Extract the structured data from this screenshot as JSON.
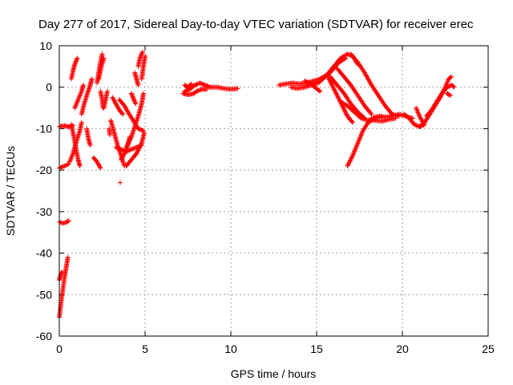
{
  "chart_data": {
    "type": "scatter",
    "title": "Day 277 of 2017, Sidereal Day-to-day VTEC variation (SDTVAR) for receiver erec",
    "xlabel": "GPS time / hours",
    "ylabel": "SDTVAR / TECUs",
    "xlim": [
      0,
      25
    ],
    "ylim": [
      -60,
      10
    ],
    "x_ticks": [
      0,
      5,
      10,
      15,
      20,
      25
    ],
    "y_ticks": [
      -60,
      -50,
      -40,
      -30,
      -20,
      -10,
      0,
      10
    ],
    "grid": true,
    "legend": "none",
    "marker": "plus",
    "color": "#ff0000",
    "series": [
      {
        "tracks": [
          [
            [
              0.0,
              -55.5
            ],
            [
              0.1,
              -52.0
            ],
            [
              0.2,
              -49.0
            ],
            [
              0.3,
              -46.0
            ],
            [
              0.4,
              -43.5
            ],
            [
              0.5,
              -41.0
            ]
          ],
          [
            [
              0.0,
              -46.5
            ],
            [
              0.1,
              -45.0
            ],
            [
              0.15,
              -44.5
            ]
          ],
          [
            [
              0.0,
              -32.5
            ],
            [
              0.2,
              -32.8
            ],
            [
              0.4,
              -32.6
            ],
            [
              0.55,
              -32.2
            ]
          ],
          [
            [
              0.0,
              -19.5
            ],
            [
              0.3,
              -19.0
            ],
            [
              0.55,
              -18.5
            ]
          ],
          [
            [
              0.0,
              -9.5
            ],
            [
              0.3,
              -9.3
            ],
            [
              0.6,
              -9.6
            ],
            [
              0.8,
              -9.2
            ]
          ],
          [
            [
              0.7,
              -9.0
            ],
            [
              0.8,
              -11.0
            ],
            [
              0.9,
              -13.0
            ],
            [
              1.0,
              -15.5
            ],
            [
              1.1,
              -17.5
            ],
            [
              1.2,
              -19.0
            ]
          ],
          [
            [
              0.6,
              -18.0
            ],
            [
              0.8,
              -16.0
            ],
            [
              1.0,
              -13.0
            ],
            [
              1.2,
              -10.5
            ],
            [
              1.3,
              -8.5
            ]
          ],
          [
            [
              0.7,
              2.0
            ],
            [
              0.8,
              4.0
            ],
            [
              0.9,
              5.5
            ],
            [
              1.05,
              7.0
            ]
          ],
          [
            [
              0.9,
              -5.0
            ],
            [
              1.1,
              -3.0
            ],
            [
              1.3,
              -1.0
            ],
            [
              1.4,
              0.5
            ]
          ],
          [
            [
              1.3,
              -6.5
            ],
            [
              1.45,
              -4.0
            ],
            [
              1.6,
              -2.0
            ],
            [
              1.8,
              0.5
            ],
            [
              1.9,
              2.0
            ]
          ],
          [
            [
              1.6,
              -10.0
            ],
            [
              1.7,
              -12.5
            ],
            [
              1.8,
              -14.0
            ]
          ],
          [
            [
              2.2,
              1.0
            ],
            [
              2.3,
              3.5
            ],
            [
              2.4,
              6.0
            ],
            [
              2.5,
              8.0
            ]
          ],
          [
            [
              2.3,
              2.0
            ],
            [
              2.45,
              5.0
            ],
            [
              2.6,
              7.0
            ]
          ],
          [
            [
              2.4,
              -1.0
            ],
            [
              2.5,
              -3.0
            ],
            [
              2.55,
              -5.0
            ]
          ],
          [
            [
              2.6,
              -5.0
            ],
            [
              2.7,
              -3.0
            ],
            [
              2.8,
              -1.0
            ]
          ],
          [
            [
              2.0,
              -17.0
            ],
            [
              2.2,
              -18.0
            ],
            [
              2.4,
              -19.5
            ]
          ],
          [
            [
              3.1,
              -2.5
            ],
            [
              3.3,
              -4.0
            ],
            [
              3.5,
              -5.5
            ],
            [
              3.7,
              -6.5
            ]
          ],
          [
            [
              3.0,
              -8.0
            ],
            [
              3.2,
              -11.0
            ],
            [
              3.4,
              -14.0
            ],
            [
              3.6,
              -16.5
            ],
            [
              3.8,
              -19.0
            ]
          ],
          [
            [
              3.3,
              -14.5
            ],
            [
              3.6,
              -15.0
            ],
            [
              3.9,
              -15.5
            ],
            [
              4.2,
              -15.0
            ],
            [
              4.5,
              -14.5
            ],
            [
              4.8,
              -14.0
            ]
          ],
          [
            [
              3.9,
              -14.5
            ],
            [
              4.2,
              -12.0
            ],
            [
              4.4,
              -9.5
            ],
            [
              4.6,
              -7.0
            ],
            [
              4.8,
              -4.0
            ],
            [
              4.9,
              -1.5
            ]
          ],
          [
            [
              3.9,
              -19.0
            ],
            [
              4.2,
              -17.5
            ],
            [
              4.5,
              -16.0
            ],
            [
              4.8,
              -13.5
            ],
            [
              4.95,
              -11.0
            ]
          ],
          [
            [
              3.6,
              -17.5
            ],
            [
              3.8,
              -16.0
            ],
            [
              4.0,
              -14.0
            ],
            [
              4.1,
              -12.0
            ]
          ],
          [
            [
              3.5,
              -3.0
            ],
            [
              3.8,
              -4.5
            ],
            [
              4.0,
              -6.0
            ],
            [
              4.3,
              -8.0
            ],
            [
              4.6,
              -10.0
            ],
            [
              4.9,
              -10.5
            ]
          ],
          [
            [
              4.4,
              3.5
            ],
            [
              4.5,
              2.0
            ],
            [
              4.6,
              0.5
            ]
          ],
          [
            [
              4.6,
              5.0
            ],
            [
              4.7,
              7.0
            ],
            [
              4.85,
              8.5
            ]
          ],
          [
            [
              4.8,
              2.0
            ],
            [
              4.9,
              5.0
            ],
            [
              5.0,
              7.5
            ]
          ],
          [
            [
              4.2,
              -1.5
            ],
            [
              4.35,
              -3.0
            ],
            [
              4.45,
              -4.0
            ]
          ],
          [
            [
              2.9,
              -10.0
            ],
            [
              2.95,
              -11.5
            ]
          ],
          [
            [
              3.55,
              -23.0
            ]
          ],
          [
            [
              7.3,
              -1.0
            ],
            [
              7.6,
              -0.5
            ],
            [
              7.9,
              0.5
            ],
            [
              8.2,
              1.0
            ],
            [
              8.5,
              0.5
            ],
            [
              8.8,
              0.0
            ],
            [
              9.2,
              0.0
            ],
            [
              9.6,
              -0.3
            ],
            [
              10.0,
              -0.5
            ],
            [
              10.4,
              -0.3
            ]
          ],
          [
            [
              7.2,
              -1.5
            ],
            [
              7.5,
              -1.8
            ],
            [
              7.8,
              -1.6
            ],
            [
              8.0,
              -1.0
            ],
            [
              8.3,
              -0.5
            ],
            [
              8.6,
              -0.5
            ]
          ],
          [
            [
              7.3,
              0.5
            ],
            [
              7.5,
              0.0
            ],
            [
              7.7,
              0.8
            ]
          ],
          [
            [
              12.8,
              0.5
            ],
            [
              13.2,
              0.8
            ],
            [
              13.6,
              1.0
            ],
            [
              14.0,
              0.8
            ],
            [
              14.4,
              1.0
            ],
            [
              14.8,
              1.5
            ],
            [
              15.2,
              2.0
            ],
            [
              15.6,
              3.0
            ],
            [
              16.0,
              5.0
            ],
            [
              16.4,
              7.0
            ],
            [
              16.8,
              8.0
            ],
            [
              17.1,
              7.5
            ],
            [
              17.4,
              5.5
            ]
          ],
          [
            [
              13.5,
              0.0
            ],
            [
              13.9,
              -0.3
            ],
            [
              14.3,
              0.0
            ],
            [
              14.7,
              0.5
            ],
            [
              15.1,
              1.0
            ],
            [
              15.5,
              2.5
            ],
            [
              15.9,
              4.0
            ],
            [
              16.3,
              6.0
            ],
            [
              16.7,
              7.0
            ]
          ],
          [
            [
              14.3,
              1.5
            ],
            [
              14.6,
              1.0
            ],
            [
              14.9,
              0.0
            ],
            [
              15.2,
              -1.0
            ]
          ],
          [
            [
              15.6,
              3.0
            ],
            [
              15.9,
              0.5
            ],
            [
              16.2,
              -2.0
            ],
            [
              16.5,
              -4.5
            ],
            [
              16.8,
              -7.0
            ],
            [
              17.1,
              -8.5
            ]
          ],
          [
            [
              15.8,
              2.5
            ],
            [
              16.2,
              0.5
            ],
            [
              16.6,
              -1.5
            ],
            [
              17.0,
              -4.0
            ],
            [
              17.4,
              -6.0
            ],
            [
              17.8,
              -7.5
            ]
          ],
          [
            [
              16.4,
              -3.5
            ],
            [
              16.8,
              -4.5
            ],
            [
              17.2,
              -6.0
            ],
            [
              17.6,
              -7.5
            ],
            [
              18.0,
              -8.0
            ],
            [
              18.4,
              -7.5
            ]
          ],
          [
            [
              16.2,
              4.5
            ],
            [
              16.6,
              2.5
            ],
            [
              17.0,
              0.5
            ],
            [
              17.4,
              -2.0
            ],
            [
              17.8,
              -4.5
            ],
            [
              18.2,
              -6.5
            ]
          ],
          [
            [
              17.0,
              8.0
            ],
            [
              17.4,
              6.0
            ],
            [
              17.8,
              3.5
            ],
            [
              18.2,
              0.5
            ],
            [
              18.6,
              -2.0
            ],
            [
              19.0,
              -4.5
            ],
            [
              19.4,
              -6.5
            ],
            [
              19.8,
              -7.0
            ]
          ],
          [
            [
              16.8,
              -19.0
            ],
            [
              17.1,
              -16.5
            ],
            [
              17.4,
              -13.5
            ],
            [
              17.7,
              -10.5
            ],
            [
              18.0,
              -8.5
            ],
            [
              18.4,
              -7.5
            ],
            [
              18.8,
              -7.0
            ]
          ],
          [
            [
              18.2,
              -7.5
            ],
            [
              18.6,
              -7.0
            ],
            [
              19.0,
              -7.2
            ],
            [
              19.4,
              -7.0
            ],
            [
              19.8,
              -6.5
            ],
            [
              20.2,
              -7.0
            ],
            [
              20.6,
              -7.5
            ]
          ],
          [
            [
              18.3,
              -8.0
            ],
            [
              18.8,
              -8.2
            ],
            [
              19.2,
              -7.8
            ],
            [
              19.6,
              -7.5
            ]
          ],
          [
            [
              20.1,
              -6.5
            ],
            [
              20.4,
              -7.5
            ],
            [
              20.7,
              -9.0
            ],
            [
              21.0,
              -9.5
            ],
            [
              21.3,
              -9.0
            ]
          ],
          [
            [
              20.8,
              -5.0
            ],
            [
              21.0,
              -7.0
            ],
            [
              21.2,
              -8.5
            ]
          ],
          [
            [
              21.0,
              -9.5
            ],
            [
              21.3,
              -8.5
            ],
            [
              21.6,
              -6.5
            ],
            [
              21.9,
              -4.5
            ],
            [
              22.2,
              -2.5
            ],
            [
              22.5,
              0.0
            ],
            [
              22.7,
              2.0
            ],
            [
              22.85,
              2.5
            ]
          ],
          [
            [
              21.4,
              -7.0
            ],
            [
              21.7,
              -5.5
            ],
            [
              22.0,
              -3.5
            ],
            [
              22.3,
              -1.5
            ],
            [
              22.6,
              0.0
            ],
            [
              22.9,
              0.5
            ],
            [
              23.0,
              0.0
            ]
          ],
          [
            [
              22.6,
              -1.5
            ],
            [
              22.8,
              -2.0
            ]
          ]
        ]
      }
    ]
  }
}
